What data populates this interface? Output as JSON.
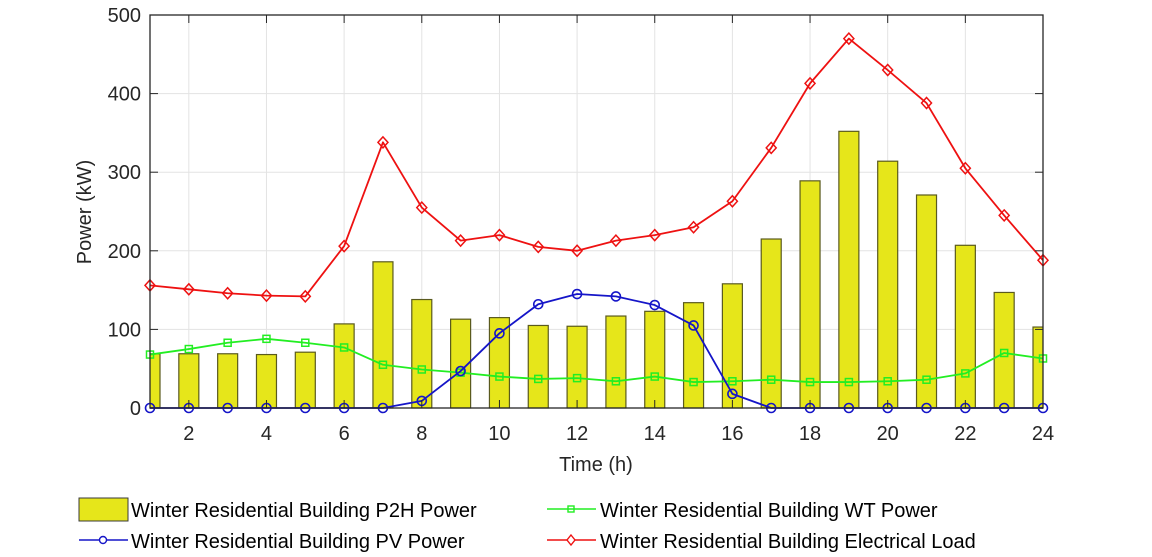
{
  "chart_data": {
    "type": "bar+line",
    "title": "",
    "xlabel": "Time (h)",
    "ylabel": "Power (kW)",
    "xlim": [
      1,
      24
    ],
    "ylim": [
      0,
      500
    ],
    "xticks": [
      2,
      4,
      6,
      8,
      10,
      12,
      14,
      16,
      18,
      20,
      22,
      24
    ],
    "yticks": [
      0,
      100,
      200,
      300,
      400,
      500
    ],
    "grid": true,
    "legend_position": "bottom, 2 columns",
    "x": [
      1,
      2,
      3,
      4,
      5,
      6,
      7,
      8,
      9,
      10,
      11,
      12,
      13,
      14,
      15,
      16,
      17,
      18,
      19,
      20,
      21,
      22,
      23,
      24
    ],
    "series": [
      {
        "name": "Winter Residential Building P2H Power",
        "type": "bar",
        "color": "#E6E61A",
        "edge_color": "#5A5A1E",
        "values": [
          69,
          69,
          69,
          68,
          71,
          107,
          186,
          138,
          113,
          115,
          105,
          104,
          117,
          123,
          134,
          158,
          215,
          289,
          352,
          314,
          271,
          207,
          147,
          103
        ]
      },
      {
        "name": "Winter Residential Building WT Power",
        "type": "line",
        "marker": "square",
        "color": "#22EE22",
        "values": [
          68,
          75,
          83,
          88,
          83,
          77,
          55,
          49,
          45,
          40,
          37,
          38,
          34,
          40,
          33,
          34,
          36,
          33,
          33,
          34,
          36,
          44,
          70,
          63
        ]
      },
      {
        "name": "Winter Residential Building PV Power",
        "type": "line",
        "marker": "circle",
        "color": "#1515C8",
        "values": [
          0,
          0,
          0,
          0,
          0,
          0,
          0,
          9,
          47,
          95,
          132,
          145,
          142,
          131,
          105,
          18,
          0,
          0,
          0,
          0,
          0,
          0,
          0,
          0
        ]
      },
      {
        "name": "Winter Residential Building Electrical Load",
        "type": "line",
        "marker": "diamond",
        "color": "#EE1111",
        "values": [
          156,
          151,
          146,
          143,
          142,
          206,
          338,
          255,
          213,
          220,
          205,
          200,
          213,
          220,
          230,
          263,
          331,
          413,
          470,
          430,
          388,
          305,
          245,
          188
        ]
      }
    ]
  },
  "legend": {
    "items": [
      {
        "label": "Winter Residential Building P2H Power",
        "symbol": "bar-swatch"
      },
      {
        "label": "Winter Residential Building WT Power",
        "symbol": "green-line-square"
      },
      {
        "label": "Winter Residential Building PV Power",
        "symbol": "blue-line-circle"
      },
      {
        "label": "Winter Residential Building Electrical Load",
        "symbol": "red-line-diamond"
      }
    ]
  },
  "axes": {
    "xlabel": "Time (h)",
    "ylabel": "Power (kW)"
  }
}
